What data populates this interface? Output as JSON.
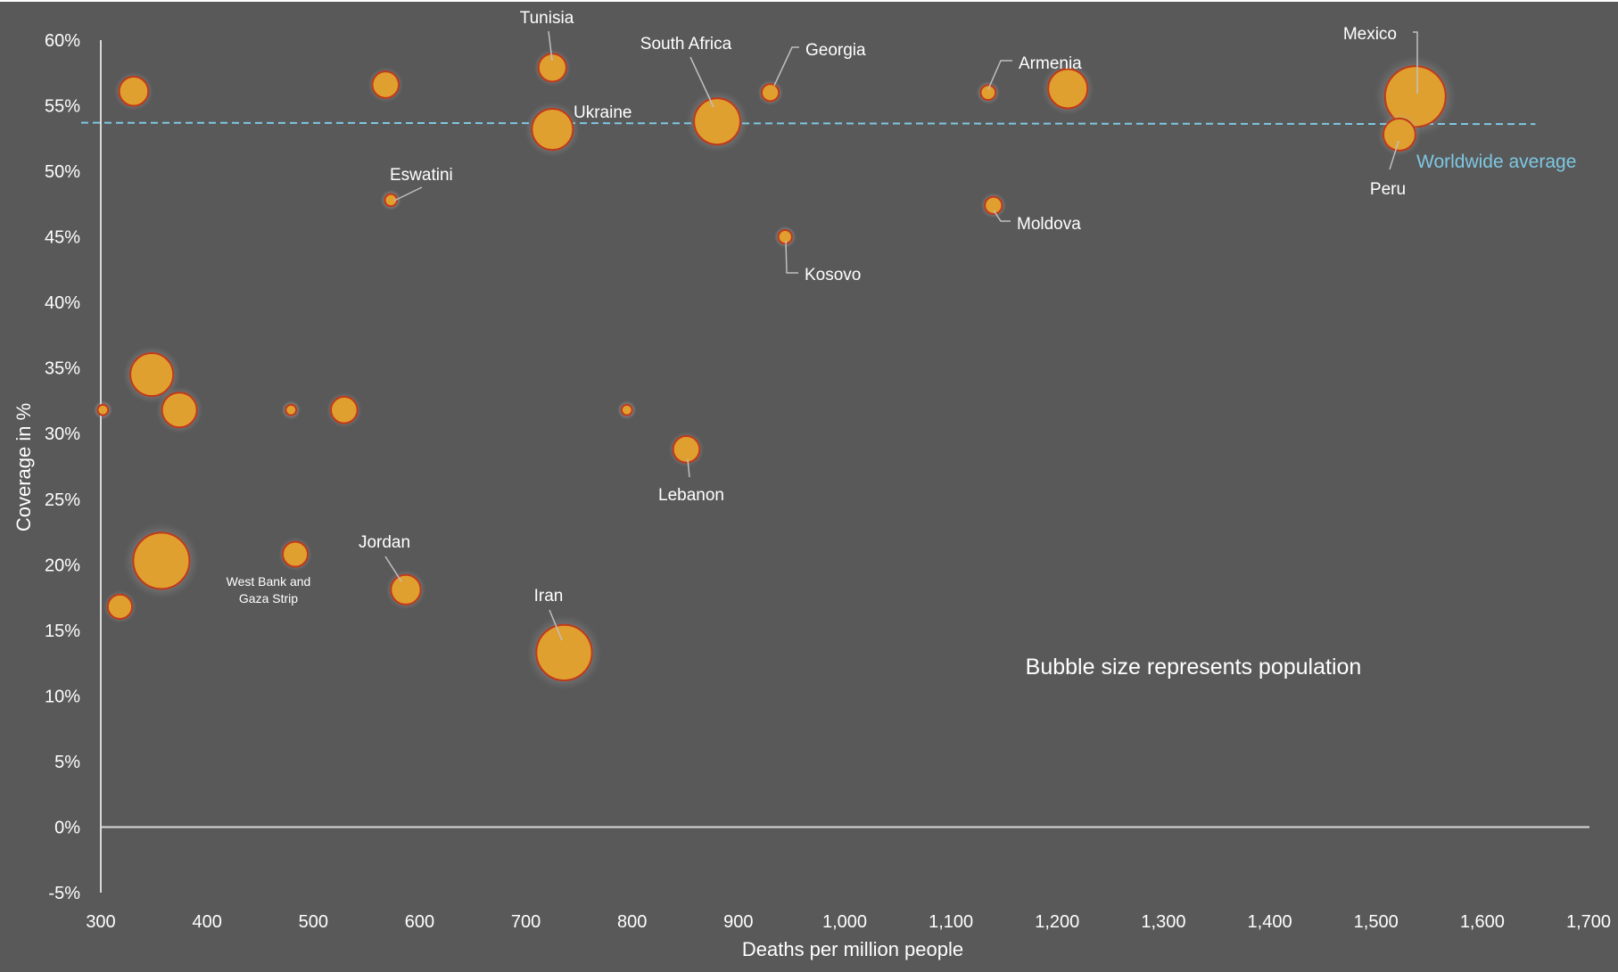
{
  "chart_data": {
    "type": "scatter",
    "subtype": "bubble",
    "title": "",
    "xlabel": "Deaths per million people",
    "ylabel": "Coverage in %",
    "xlim": [
      300,
      1700
    ],
    "ylim": [
      -5,
      60
    ],
    "x_ticks": [
      300,
      400,
      500,
      600,
      700,
      800,
      900,
      1000,
      1100,
      1200,
      1300,
      1400,
      1500,
      1600,
      1700
    ],
    "x_tick_labels": [
      "300",
      "400",
      "500",
      "600",
      "700",
      "800",
      "900",
      "1,000",
      "1,100",
      "1,200",
      "1,300",
      "1,400",
      "1,500",
      "1,600",
      "1,700"
    ],
    "y_ticks": [
      -5,
      0,
      5,
      10,
      15,
      20,
      25,
      30,
      35,
      40,
      45,
      50,
      55,
      60
    ],
    "y_tick_labels": [
      "-5%",
      "0%",
      "5%",
      "10%",
      "15%",
      "20%",
      "25%",
      "30%",
      "35%",
      "40%",
      "45%",
      "50%",
      "55%",
      "60%"
    ],
    "grid": false,
    "size_encoding": "population (relative bubble size)",
    "annotation_note": "Bubble size represents population",
    "reference_line": {
      "label": "Worldwide average",
      "y_start": 53.7,
      "y_end": 53.6,
      "color": "#7ec8e3"
    },
    "colors": {
      "background": "#595959",
      "bubble_fill": "#e0a030",
      "bubble_stroke": "#c0391a",
      "text": "#ffffff",
      "axis": "#d9d9d9"
    },
    "points": [
      {
        "label": "Mexico",
        "x": 1537,
        "y": 55.7,
        "size": 1.0
      },
      {
        "label": "Peru",
        "x": 1522,
        "y": 52.8,
        "size": 0.28
      },
      {
        "label": "Armenia",
        "x": 1135,
        "y": 56.0,
        "size": 0.06
      },
      {
        "label": "",
        "x": 1210,
        "y": 56.3,
        "size": 0.42
      },
      {
        "label": "Moldova",
        "x": 1140,
        "y": 47.4,
        "size": 0.08
      },
      {
        "label": "Georgia",
        "x": 930,
        "y": 56.0,
        "size": 0.08
      },
      {
        "label": "Kosovo",
        "x": 944,
        "y": 45.0,
        "size": 0.05
      },
      {
        "label": "South Africa",
        "x": 880,
        "y": 53.8,
        "size": 0.58
      },
      {
        "label": "Ukraine",
        "x": 725,
        "y": 53.2,
        "size": 0.46
      },
      {
        "label": "Tunisia",
        "x": 725,
        "y": 57.9,
        "size": 0.21
      },
      {
        "label": "Eswatini",
        "x": 573,
        "y": 47.8,
        "size": 0.04
      },
      {
        "label": "",
        "x": 568,
        "y": 56.6,
        "size": 0.19
      },
      {
        "label": "",
        "x": 331,
        "y": 56.1,
        "size": 0.23
      },
      {
        "label": "",
        "x": 348,
        "y": 34.5,
        "size": 0.5
      },
      {
        "label": "",
        "x": 374,
        "y": 31.8,
        "size": 0.33
      },
      {
        "label": "",
        "x": 302,
        "y": 31.8,
        "size": 0.03
      },
      {
        "label": "",
        "x": 479,
        "y": 31.8,
        "size": 0.03
      },
      {
        "label": "",
        "x": 529,
        "y": 31.8,
        "size": 0.19
      },
      {
        "label": "",
        "x": 795,
        "y": 31.8,
        "size": 0.03
      },
      {
        "label": "Lebanon",
        "x": 851,
        "y": 28.8,
        "size": 0.19
      },
      {
        "label": "",
        "x": 357,
        "y": 20.3,
        "size": 0.86
      },
      {
        "label": "West Bank and Gaza Strip",
        "x": 483,
        "y": 20.8,
        "size": 0.17
      },
      {
        "label": "Jordan",
        "x": 587,
        "y": 18.1,
        "size": 0.24
      },
      {
        "label": "",
        "x": 318,
        "y": 16.8,
        "size": 0.16
      },
      {
        "label": "Iran",
        "x": 736,
        "y": 13.3,
        "size": 0.84
      }
    ]
  }
}
